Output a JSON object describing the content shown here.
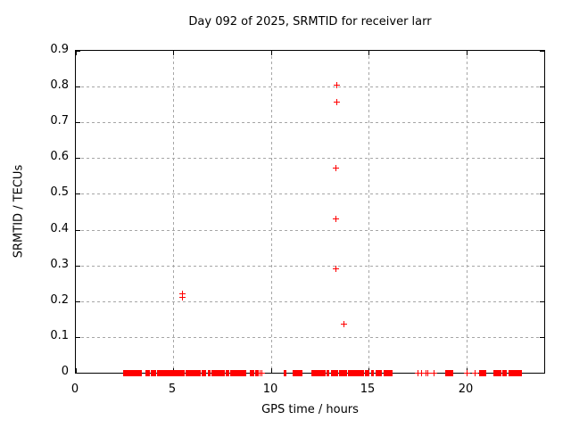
{
  "chart_data": {
    "type": "scatter",
    "title": "Day 092 of 2025, SRMTID for receiver larr",
    "xlabel": "GPS time / hours",
    "ylabel": "SRMTID / TECUs",
    "xlim": [
      0,
      24
    ],
    "ylim": [
      0,
      0.9
    ],
    "xticks": [
      0,
      5,
      10,
      15,
      20
    ],
    "xtick_labels": [
      "0",
      "5",
      "10",
      "15",
      "20"
    ],
    "yticks": [
      0,
      0.1,
      0.2,
      0.3,
      0.4,
      0.5,
      0.6,
      0.7,
      0.8,
      0.9
    ],
    "ytick_labels": [
      "0",
      "0.1",
      "0.2",
      "0.3",
      "0.4",
      "0.5",
      "0.6",
      "0.7",
      "0.8",
      "0.9"
    ],
    "grid": true,
    "legend": "none",
    "marker": "plus",
    "marker_color": "#ff0000",
    "grid_color": "#a6a6a6",
    "border_color": "#000000",
    "series": [
      {
        "name": "SRMTID",
        "points": [
          [
            5.44,
            0.223
          ],
          [
            5.44,
            0.211
          ],
          [
            13.35,
            0.805
          ],
          [
            13.33,
            0.757
          ],
          [
            13.3,
            0.573
          ],
          [
            13.28,
            0.431
          ],
          [
            13.31,
            0.291
          ],
          [
            13.72,
            0.138
          ]
        ]
      }
    ],
    "zero_value_segments": [
      [
        2.44,
        3.42
      ],
      [
        3.56,
        3.79
      ],
      [
        3.85,
        4.11
      ],
      [
        4.14,
        5.4
      ],
      [
        5.44,
        5.6
      ],
      [
        5.63,
        6.4
      ],
      [
        6.46,
        6.67
      ],
      [
        6.76,
        6.88
      ],
      [
        6.95,
        7.62
      ],
      [
        7.68,
        7.87
      ],
      [
        7.92,
        8.76
      ],
      [
        8.9,
        9.11
      ],
      [
        9.17,
        9.37
      ],
      [
        10.66,
        10.78
      ],
      [
        11.12,
        11.6
      ],
      [
        12.06,
        12.79
      ],
      [
        12.83,
        12.98
      ],
      [
        13.07,
        13.43
      ],
      [
        13.48,
        13.89
      ],
      [
        13.94,
        14.74
      ],
      [
        14.8,
        15.05
      ],
      [
        15.11,
        15.26
      ],
      [
        15.35,
        15.69
      ],
      [
        15.76,
        16.22
      ],
      [
        18.92,
        19.34
      ],
      [
        20.64,
        20.99
      ],
      [
        21.4,
        21.81
      ],
      [
        21.87,
        22.08
      ],
      [
        22.15,
        22.85
      ]
    ],
    "zero_value_singles": [
      9.43,
      9.53,
      17.51,
      17.7,
      17.9,
      18.0,
      18.31,
      20.03,
      20.44
    ]
  }
}
